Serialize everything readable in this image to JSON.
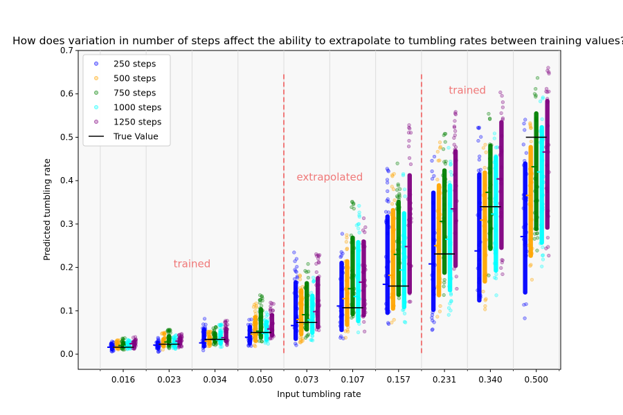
{
  "chart_data": {
    "type": "scatter",
    "title": "How does variation in number of steps affect the ability to extrapolate to tumbling rates between training values?",
    "xlabel": "Input tumbling rate",
    "ylabel": "Predicted tumbling rate",
    "ylim": [
      -0.035,
      0.7
    ],
    "yticks": [
      "0.0",
      "0.1",
      "0.2",
      "0.3",
      "0.4",
      "0.5",
      "0.6",
      "0.7"
    ],
    "categories": [
      "0.016",
      "0.023",
      "0.034",
      "0.050",
      "0.073",
      "0.107",
      "0.157",
      "0.231",
      "0.340",
      "0.500"
    ],
    "true_values": [
      0.016,
      0.023,
      0.034,
      0.05,
      0.073,
      0.107,
      0.157,
      0.231,
      0.34,
      0.5
    ],
    "series": [
      {
        "name": "250 steps",
        "color": "#0000ff",
        "mean": [
          0.016,
          0.021,
          0.026,
          0.039,
          0.066,
          0.111,
          0.161,
          0.208,
          0.238,
          0.271
        ],
        "min": [
          0.003,
          0.005,
          0.008,
          0.012,
          0.015,
          0.025,
          0.06,
          0.05,
          0.068,
          0.08
        ],
        "max": [
          0.03,
          0.038,
          0.084,
          0.085,
          0.24,
          0.285,
          0.43,
          0.49,
          0.54,
          0.56
        ]
      },
      {
        "name": "500 steps",
        "color": "#ffa500",
        "mean": [
          0.016,
          0.023,
          0.03,
          0.046,
          0.08,
          0.128,
          0.182,
          0.25,
          0.309,
          0.366
        ],
        "min": [
          0.008,
          0.01,
          0.015,
          0.018,
          0.025,
          0.035,
          0.065,
          0.08,
          0.1,
          0.16
        ],
        "max": [
          0.035,
          0.05,
          0.055,
          0.12,
          0.2,
          0.28,
          0.44,
          0.49,
          0.5,
          0.56
        ]
      },
      {
        "name": "750 steps",
        "color": "#008000",
        "mean": [
          0.02,
          0.028,
          0.034,
          0.053,
          0.091,
          0.151,
          0.23,
          0.306,
          0.373,
          0.432
        ],
        "min": [
          0.01,
          0.012,
          0.02,
          0.025,
          0.035,
          0.06,
          0.09,
          0.13,
          0.18,
          0.22
        ],
        "max": [
          0.038,
          0.058,
          0.065,
          0.145,
          0.22,
          0.355,
          0.44,
          0.51,
          0.56,
          0.645
        ]
      },
      {
        "name": "1000 steps",
        "color": "#00ffff",
        "mean": [
          0.018,
          0.024,
          0.033,
          0.048,
          0.079,
          0.133,
          0.194,
          0.265,
          0.323,
          0.42
        ],
        "min": [
          0.008,
          0.01,
          0.015,
          0.02,
          0.03,
          0.045,
          0.065,
          0.09,
          0.13,
          0.18
        ],
        "max": [
          0.035,
          0.045,
          0.07,
          0.1,
          0.18,
          0.35,
          0.42,
          0.48,
          0.55,
          0.6
        ]
      },
      {
        "name": "1250 steps",
        "color": "#800080",
        "mean": [
          0.024,
          0.03,
          0.038,
          0.058,
          0.098,
          0.166,
          0.248,
          0.335,
          0.404,
          0.466
        ],
        "min": [
          0.012,
          0.015,
          0.02,
          0.03,
          0.04,
          0.05,
          0.09,
          0.14,
          0.17,
          0.21
        ],
        "max": [
          0.04,
          0.05,
          0.08,
          0.12,
          0.235,
          0.33,
          0.53,
          0.565,
          0.63,
          0.67
        ]
      }
    ],
    "true_value_label": "True Value",
    "annotations": [
      {
        "text": "trained",
        "x": 1.5,
        "y": 0.2
      },
      {
        "text": "extrapolated",
        "x": 4.5,
        "y": 0.4
      },
      {
        "text": "trained",
        "x": 7.5,
        "y": 0.6
      }
    ],
    "dividers": [
      3.5,
      6.5
    ],
    "legend_position": "upper-left",
    "grid": false
  }
}
